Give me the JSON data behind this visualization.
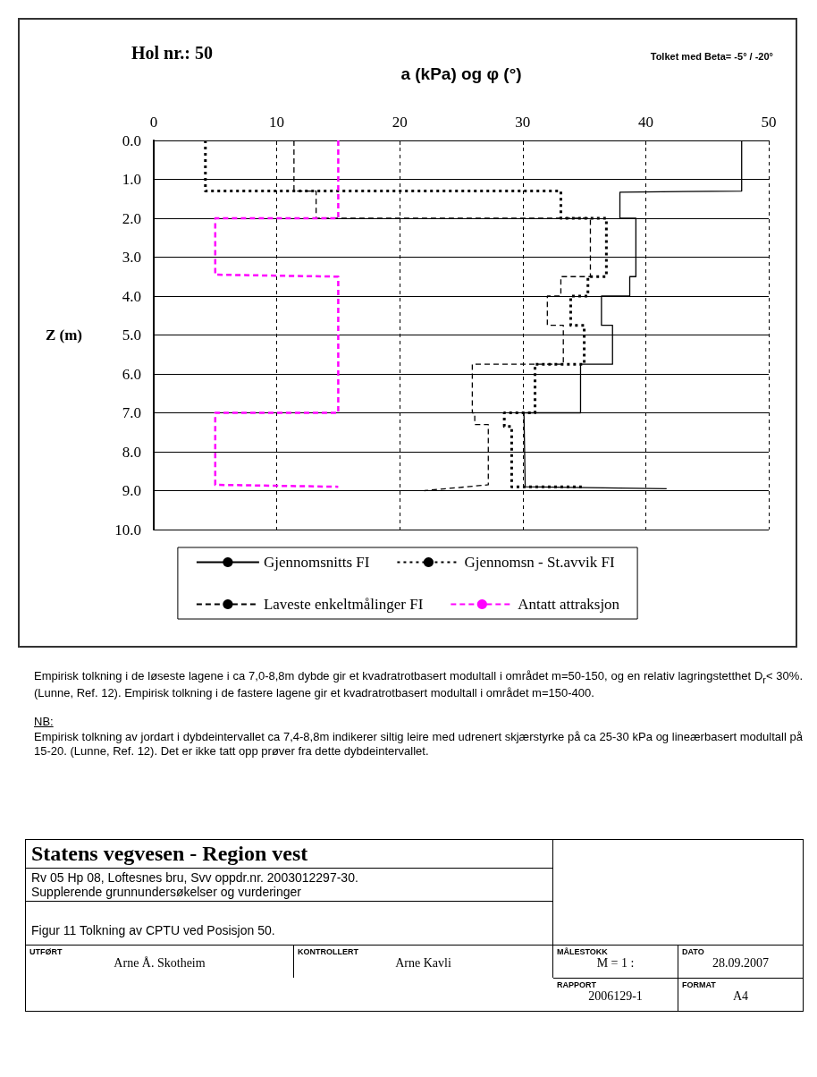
{
  "chart_data": {
    "type": "line",
    "title": "Hol nr.: 50",
    "xlabel": "a (kPa) og φ (°)",
    "subtitle": "Tolket med Beta= -5° / -20°",
    "ylabel": "Z (m)",
    "xlim": [
      0,
      50
    ],
    "xticks": [
      0,
      10,
      20,
      30,
      40,
      50
    ],
    "ylim": [
      10,
      0
    ],
    "yticks": [
      {
        "value": 0,
        "label": "0.0"
      },
      {
        "value": 1,
        "label": "1.0"
      },
      {
        "value": 2,
        "label": "2.0"
      },
      {
        "value": 3,
        "label": "3.0"
      },
      {
        "value": 4,
        "label": "4.0"
      },
      {
        "value": 5,
        "label": "5.0"
      },
      {
        "value": 6,
        "label": "6.0"
      },
      {
        "value": 7,
        "label": "7.0"
      },
      {
        "value": 8,
        "label": "8.0"
      },
      {
        "value": 9,
        "label": "9.0"
      },
      {
        "value": 10,
        "label": "10.0"
      }
    ],
    "grid": true,
    "legend": "bottom",
    "marker": "none",
    "series": [
      {
        "name": "Gjennomsnitts FI",
        "color": "#000000",
        "line_style": "solid",
        "x": [
          47.8,
          47.8,
          37.9,
          37.9,
          39.2,
          39.2,
          38.7,
          38.7,
          36.4,
          36.4,
          37.3,
          37.3,
          34.7,
          34.7,
          30.1,
          30.2,
          41.7
        ],
        "values": [
          0,
          1.3,
          1.33,
          2.0,
          2.0,
          3.5,
          3.5,
          4.0,
          4.0,
          4.75,
          4.75,
          5.75,
          5.75,
          7.0,
          7.0,
          8.9,
          8.95
        ]
      },
      {
        "name": "Gjennomsn - St.avvik FI",
        "color": "#000000",
        "line_style": "dotted",
        "x": [
          4.2,
          4.2,
          33.1,
          33.1,
          36.8,
          36.8,
          35.3,
          35.3,
          33.9,
          33.9,
          35.0,
          35.0,
          31.0,
          31.0,
          28.5,
          28.5,
          29.1,
          29.1,
          34.8
        ],
        "values": [
          0,
          1.3,
          1.3,
          2.0,
          2.0,
          3.5,
          3.5,
          4.0,
          4.0,
          4.75,
          4.75,
          5.75,
          5.75,
          7.0,
          7.0,
          7.35,
          7.35,
          8.9,
          8.9
        ]
      },
      {
        "name": "Laveste enkeltmålinger FI",
        "color": "#000000",
        "line_style": "dashed",
        "x": [
          11.4,
          11.4,
          13.2,
          13.2,
          35.5,
          35.5,
          33.1,
          33.1,
          32.0,
          32.0,
          33.3,
          33.3,
          25.9,
          25.9,
          26.1,
          26.1,
          27.2,
          27.2,
          22.0
        ],
        "values": [
          0,
          1.3,
          1.3,
          2.0,
          2.0,
          3.5,
          3.5,
          4.0,
          4.0,
          4.75,
          4.75,
          5.75,
          5.75,
          7.0,
          7.0,
          7.3,
          7.3,
          8.85,
          9.0
        ]
      },
      {
        "name": "Antatt attraksjon",
        "color": "#ff00ff",
        "line_style": "dashed",
        "x": [
          15.0,
          15.0,
          5.0,
          5.0,
          15.0,
          15.0,
          5.0,
          5.0,
          15.0
        ],
        "values": [
          0,
          2.0,
          2.0,
          3.45,
          3.5,
          7.0,
          7.0,
          8.85,
          8.9
        ]
      }
    ],
    "annotations": [
      "Empirisk tolkning i de løseste lagene i ca 7,0-8,8m dybde gir et kvadratrotbasert modultall i området m=50-150, og en relativ lagringstetthet D$_{r}$< 30%. (Lunne, Ref. 12). Empirisk tolkning i de fastere lagene gir et kvadratrotbasert modultall i området m=150-400.",
      "NB:",
      "Empirisk tolkning av jordart i dybdeintervallet ca 7,4-8,8m indikerer siltig leire med udrenert skjærstyrke på ca 25-30 kPa og lineærbasert modultall på 15-20. (Lunne, Ref. 12). Det er ikke tatt opp prøver fra dette dybdeintervallet.",
      "Statens vegvesen - Region vest",
      "Rv 05 Hp 08, Loftesnes bru, Svv oppdr.nr. 2003012297-30.",
      "Supplerende grunnundersøkelser og vurderinger",
      "Figur 11 Tolkning av CPTU ved Posisjon 50.",
      "MÅLESTOKK",
      "M = 1 :",
      "DATO",
      "28.09.2007",
      "UTFØRT",
      "Arne Å. Skotheim",
      "KONTROLLERT",
      "Arne Kavli",
      "RAPPORT",
      "2006129-1",
      "FORMAT",
      "A4"
    ]
  }
}
